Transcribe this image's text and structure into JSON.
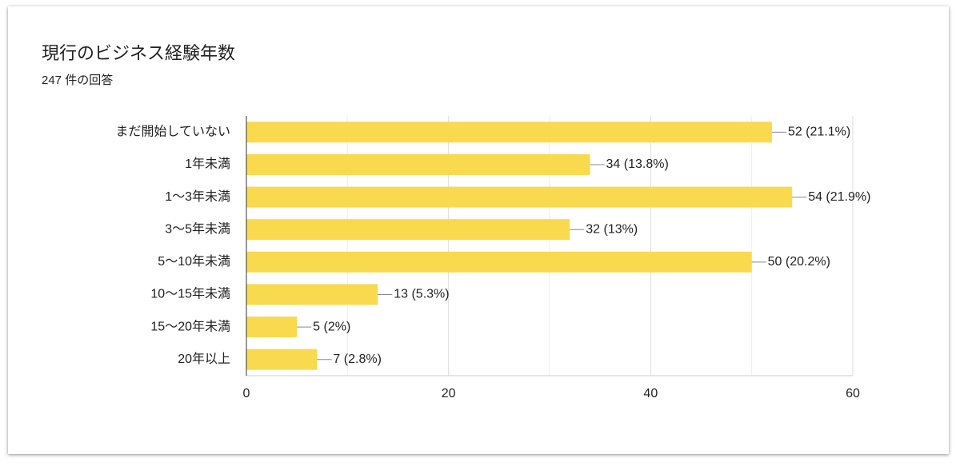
{
  "chart_data": {
    "type": "bar",
    "orientation": "horizontal",
    "title": "現行のビジネス経験年数",
    "subtitle": "247 件の回答",
    "categories": [
      "まだ開始していない",
      "1年未満",
      "1〜3年未満",
      "3〜5年未満",
      "5〜10年未満",
      "10〜15年未満",
      "15〜20年未満",
      "20年以上"
    ],
    "values": [
      52,
      34,
      54,
      32,
      50,
      13,
      5,
      7
    ],
    "value_labels": [
      "52 (21.1%)",
      "34 (13.8%)",
      "54 (21.9%)",
      "32 (13%)",
      "50 (20.2%)",
      "13 (5.3%)",
      "5 (2%)",
      "7 (2.8%)"
    ],
    "color": "#f9da4e",
    "xlim": [
      0,
      60
    ],
    "xticks": [
      0,
      20,
      40,
      60
    ],
    "minor_xticks": [
      10,
      30,
      50
    ],
    "grid": true
  }
}
